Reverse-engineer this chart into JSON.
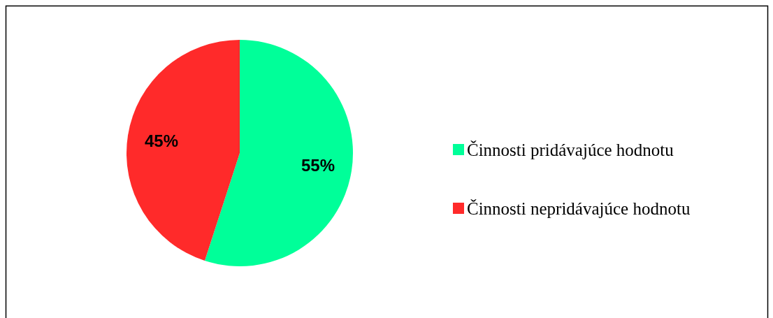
{
  "chart_data": {
    "type": "pie",
    "categories": [
      "Činnosti pridávajúce hodnotu",
      "Činnosti nepridávajúce hodnotu"
    ],
    "values": [
      55,
      45
    ],
    "colors": [
      "#00ff99",
      "#ff2a2a"
    ],
    "value_labels": [
      "55%",
      "45%"
    ],
    "legend": "right"
  }
}
